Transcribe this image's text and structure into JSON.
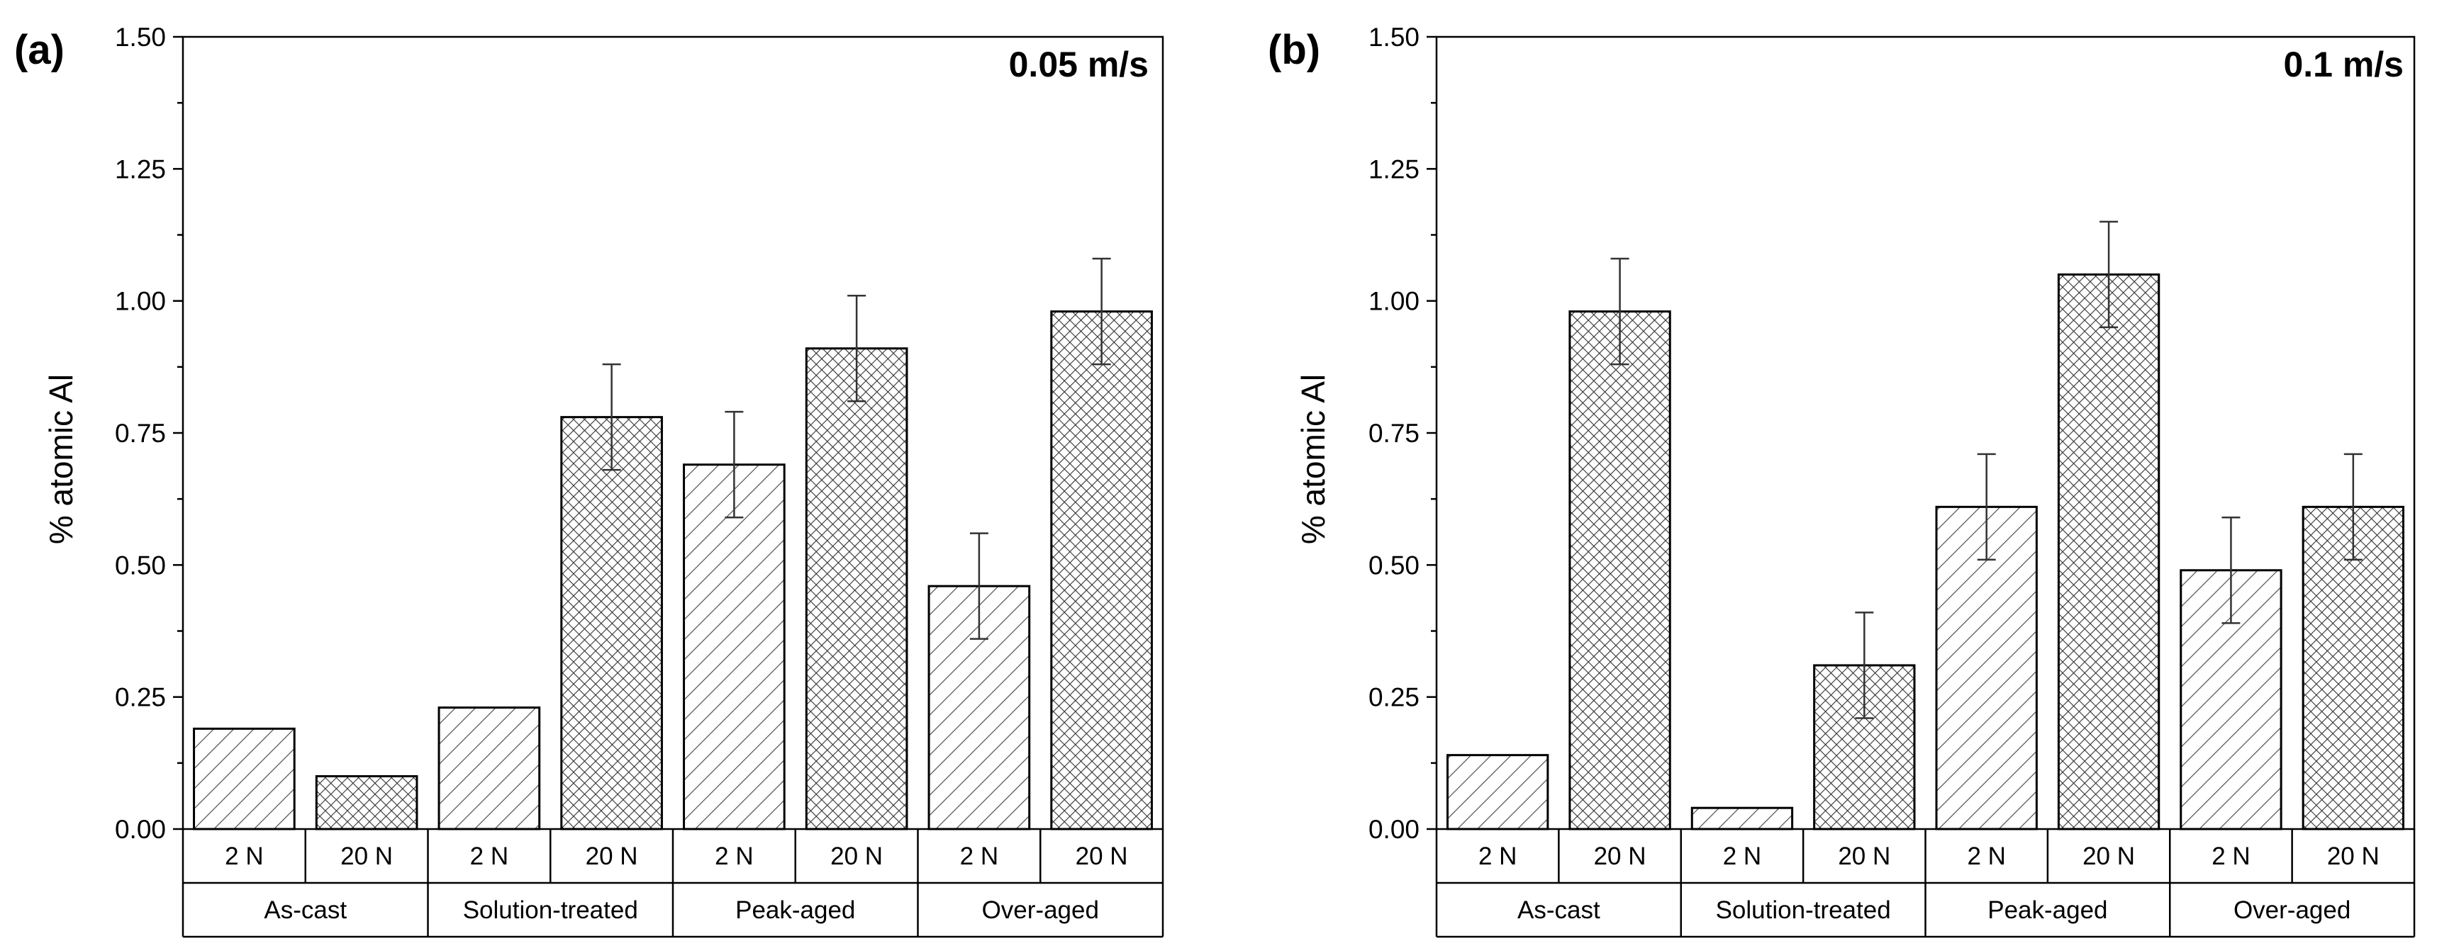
{
  "chart_data": [
    {
      "type": "bar",
      "panel_label": "(a)",
      "title": "0.05 m/s",
      "ylabel": "% atomic Al",
      "xlabel": "",
      "ylim": [
        0,
        1.5
      ],
      "y_ticks": [
        "0.00",
        "0.25",
        "0.50",
        "0.75",
        "1.00",
        "1.25",
        "1.50"
      ],
      "groups": [
        "As-cast",
        "Solution-treated",
        "Peak-aged",
        "Over-aged"
      ],
      "loads": [
        "2 N",
        "20 N"
      ],
      "categories": [
        "2 N",
        "20 N",
        "2 N",
        "20 N",
        "2 N",
        "20 N",
        "2 N",
        "20 N"
      ],
      "values": [
        0.19,
        0.1,
        0.23,
        0.78,
        0.69,
        0.91,
        0.46,
        0.98
      ],
      "errors": [
        null,
        null,
        null,
        0.1,
        0.1,
        0.1,
        0.1,
        0.1
      ],
      "patterns": [
        "diagonal",
        "crosshatch",
        "diagonal",
        "crosshatch",
        "diagonal",
        "crosshatch",
        "diagonal",
        "crosshatch"
      ]
    },
    {
      "type": "bar",
      "panel_label": "(b)",
      "title": "0.1 m/s",
      "ylabel": "% atomic Al",
      "xlabel": "",
      "ylim": [
        0,
        1.5
      ],
      "y_ticks": [
        "0.00",
        "0.25",
        "0.50",
        "0.75",
        "1.00",
        "1.25",
        "1.50"
      ],
      "groups": [
        "As-cast",
        "Solution-treated",
        "Peak-aged",
        "Over-aged"
      ],
      "loads": [
        "2 N",
        "20 N"
      ],
      "categories": [
        "2 N",
        "20 N",
        "2 N",
        "20 N",
        "2 N",
        "20 N",
        "2 N",
        "20 N"
      ],
      "values": [
        0.14,
        0.98,
        0.04,
        0.31,
        0.61,
        1.05,
        0.49,
        0.61
      ],
      "errors": [
        null,
        0.1,
        null,
        0.1,
        0.1,
        0.1,
        0.1,
        0.1
      ],
      "patterns": [
        "diagonal",
        "crosshatch",
        "diagonal",
        "crosshatch",
        "diagonal",
        "crosshatch",
        "diagonal",
        "crosshatch"
      ]
    }
  ]
}
